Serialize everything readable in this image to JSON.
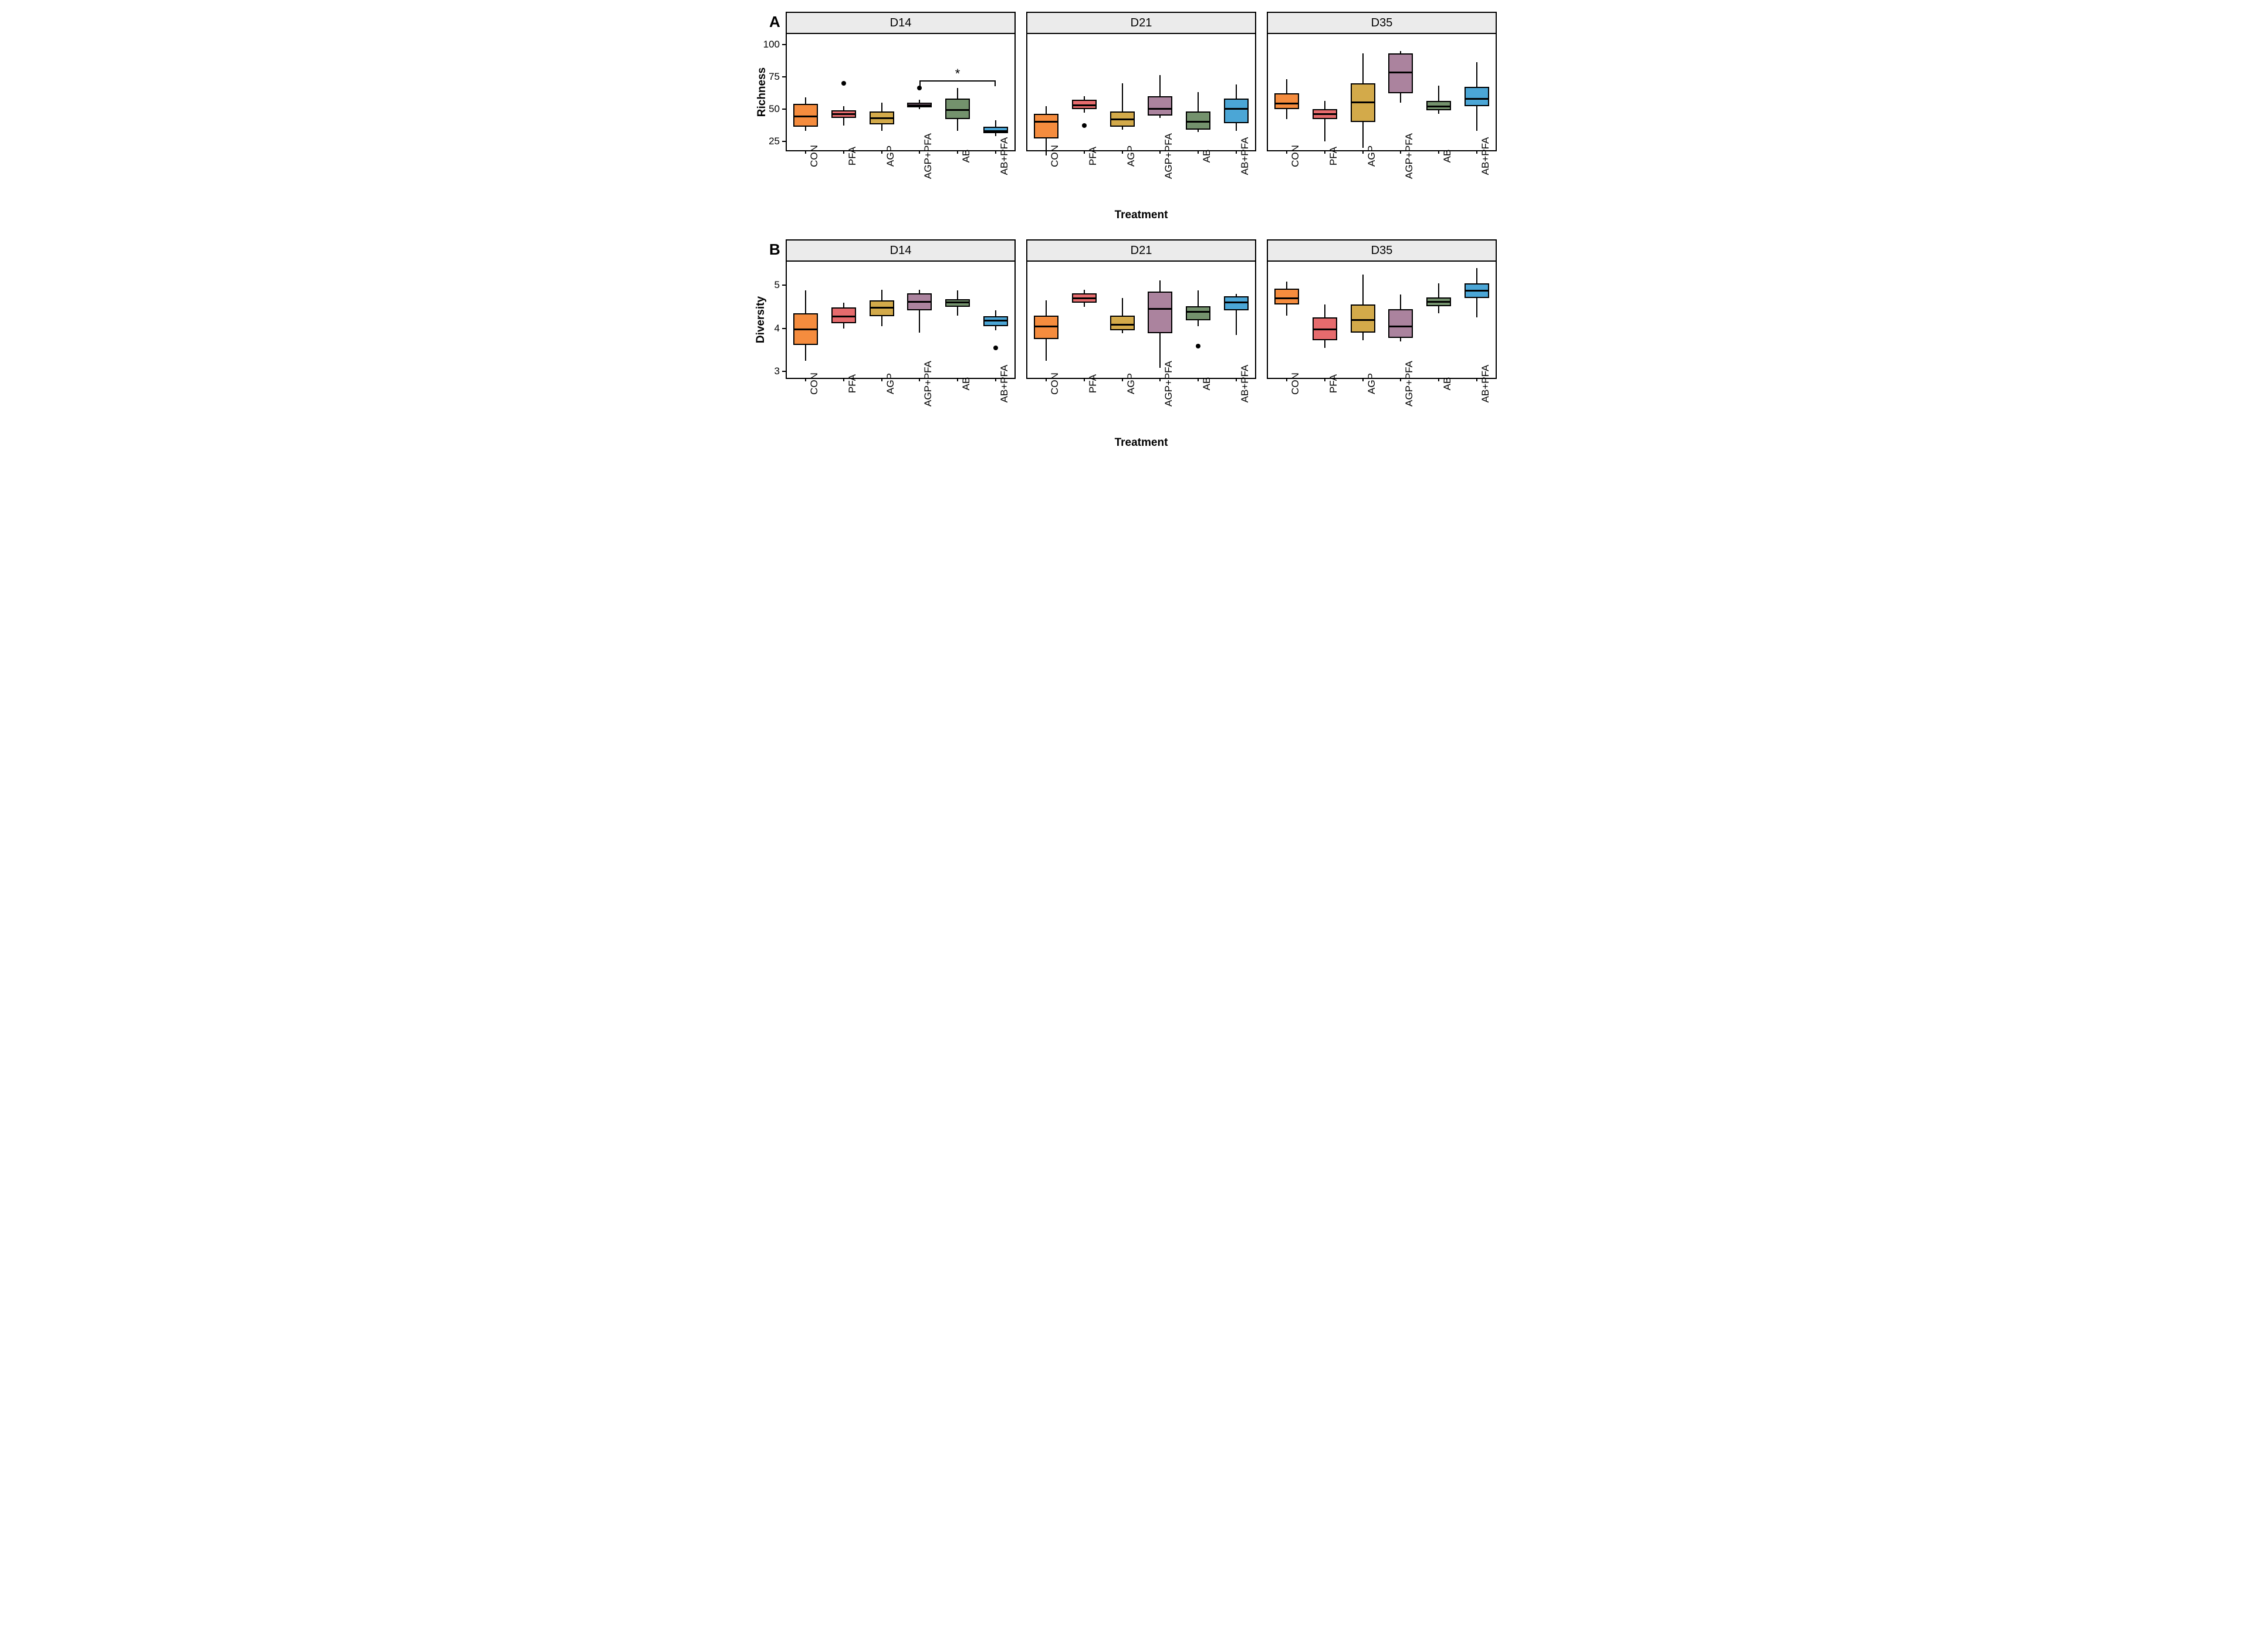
{
  "figure": {
    "background_color": "#ffffff",
    "font_family": "Arial",
    "categories": [
      "CON",
      "PFA",
      "AGP",
      "AGP+PFA",
      "AB",
      "AB+PFA"
    ],
    "category_colors": [
      "#f58c3e",
      "#e66b6d",
      "#d3aa4a",
      "#ab839e",
      "#74926d",
      "#4ba6d6"
    ],
    "box_border_color": "#000000",
    "box_border_width": 2,
    "median_width": 3,
    "whisker_width": 2,
    "outlier_radius": 4,
    "strip_bg": "#ebebeb",
    "panel_border_width": 2.5,
    "box_rel_width": 0.65,
    "rows": [
      {
        "label": "A",
        "y_title": "Richness",
        "x_title": "Treatment",
        "y_lim": [
          18,
          108
        ],
        "y_ticks": [
          25,
          50,
          75,
          100
        ],
        "facets": [
          {
            "title": "D14",
            "significance": {
              "from_idx": 3,
              "to_idx": 5,
              "label": "*",
              "y": 72
            },
            "data": [
              {
                "low": 33,
                "q1": 36,
                "med": 44,
                "q3": 54,
                "high": 59
              },
              {
                "low": 37,
                "q1": 43,
                "med": 46,
                "q3": 49,
                "high": 52,
                "outliers": [
                  70
                ]
              },
              {
                "low": 33,
                "q1": 38,
                "med": 43,
                "q3": 48,
                "high": 55
              },
              {
                "low": 50,
                "q1": 51,
                "med": 53,
                "q3": 55,
                "high": 57,
                "outliers": [
                  66
                ]
              },
              {
                "low": 33,
                "q1": 42,
                "med": 49,
                "q3": 58,
                "high": 66
              },
              {
                "low": 29,
                "q1": 31,
                "med": 33,
                "q3": 36,
                "high": 41
              }
            ]
          },
          {
            "title": "D21",
            "data": [
              {
                "low": 14,
                "q1": 27,
                "med": 40,
                "q3": 46,
                "high": 52
              },
              {
                "low": 47,
                "q1": 50,
                "med": 53,
                "q3": 57,
                "high": 60,
                "outliers": [
                  37
                ]
              },
              {
                "low": 34,
                "q1": 36,
                "med": 42,
                "q3": 48,
                "high": 70
              },
              {
                "low": 43,
                "q1": 45,
                "med": 50,
                "q3": 60,
                "high": 76
              },
              {
                "low": 32,
                "q1": 34,
                "med": 40,
                "q3": 48,
                "high": 63
              },
              {
                "low": 33,
                "q1": 39,
                "med": 50,
                "q3": 58,
                "high": 69
              }
            ]
          },
          {
            "title": "D35",
            "data": [
              {
                "low": 42,
                "q1": 50,
                "med": 54,
                "q3": 62,
                "high": 73
              },
              {
                "low": 25,
                "q1": 42,
                "med": 46,
                "q3": 50,
                "high": 56
              },
              {
                "low": 20,
                "q1": 40,
                "med": 55,
                "q3": 70,
                "high": 93
              },
              {
                "low": 55,
                "q1": 62,
                "med": 78,
                "q3": 93,
                "high": 95
              },
              {
                "low": 46,
                "q1": 49,
                "med": 52,
                "q3": 56,
                "high": 68
              },
              {
                "low": 33,
                "q1": 52,
                "med": 58,
                "q3": 67,
                "high": 86
              }
            ]
          }
        ]
      },
      {
        "label": "B",
        "y_title": "Diversity",
        "x_title": "Treatment",
        "y_lim": [
          2.85,
          5.55
        ],
        "y_ticks": [
          3,
          4,
          5
        ],
        "facets": [
          {
            "title": "D14",
            "data": [
              {
                "low": 3.25,
                "q1": 3.62,
                "med": 3.98,
                "q3": 4.35,
                "high": 4.88
              },
              {
                "low": 4.0,
                "q1": 4.12,
                "med": 4.28,
                "q3": 4.48,
                "high": 4.6
              },
              {
                "low": 4.05,
                "q1": 4.28,
                "med": 4.48,
                "q3": 4.65,
                "high": 4.9
              },
              {
                "low": 3.9,
                "q1": 4.42,
                "med": 4.62,
                "q3": 4.82,
                "high": 4.9
              },
              {
                "low": 4.3,
                "q1": 4.5,
                "med": 4.6,
                "q3": 4.68,
                "high": 4.88
              },
              {
                "low": 3.95,
                "q1": 4.05,
                "med": 4.18,
                "q3": 4.28,
                "high": 4.42,
                "outliers": [
                  3.55
                ]
              }
            ]
          },
          {
            "title": "D21",
            "data": [
              {
                "low": 3.25,
                "q1": 3.75,
                "med": 4.05,
                "q3": 4.3,
                "high": 4.65
              },
              {
                "low": 4.5,
                "q1": 4.6,
                "med": 4.7,
                "q3": 4.82,
                "high": 4.9
              },
              {
                "low": 3.88,
                "q1": 3.95,
                "med": 4.08,
                "q3": 4.3,
                "high": 4.7
              },
              {
                "low": 3.08,
                "q1": 3.88,
                "med": 4.45,
                "q3": 4.85,
                "high": 5.12
              },
              {
                "low": 4.05,
                "q1": 4.18,
                "med": 4.38,
                "q3": 4.52,
                "high": 4.88,
                "outliers": [
                  3.58
                ]
              },
              {
                "low": 3.85,
                "q1": 4.42,
                "med": 4.6,
                "q3": 4.75,
                "high": 4.8
              }
            ]
          },
          {
            "title": "D35",
            "data": [
              {
                "low": 4.3,
                "q1": 4.55,
                "med": 4.7,
                "q3": 4.92,
                "high": 5.08
              },
              {
                "low": 3.55,
                "q1": 3.72,
                "med": 3.98,
                "q3": 4.25,
                "high": 4.55
              },
              {
                "low": 3.72,
                "q1": 3.9,
                "med": 4.2,
                "q3": 4.55,
                "high": 5.25
              },
              {
                "low": 3.7,
                "q1": 3.78,
                "med": 4.05,
                "q3": 4.45,
                "high": 4.78
              },
              {
                "low": 4.35,
                "q1": 4.52,
                "med": 4.62,
                "q3": 4.72,
                "high": 5.05
              },
              {
                "low": 4.25,
                "q1": 4.7,
                "med": 4.88,
                "q3": 5.05,
                "high": 5.4
              }
            ]
          }
        ]
      }
    ]
  }
}
